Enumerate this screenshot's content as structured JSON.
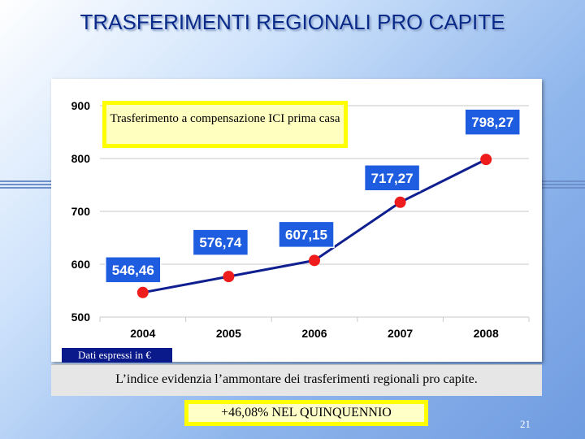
{
  "slide": {
    "title": "TRASFERIMENTI REGIONALI PRO CAPITE",
    "note": "Trasferimento a compensazione ICI prima casa",
    "units_label": "Dati espressi in €",
    "summary": "L’indice evidenzia l’ammontare dei trasferimenti regionali pro capite.",
    "growth": "+46,08% NEL QUINQUENNIO",
    "page_number": "21"
  },
  "chart_data": {
    "type": "line",
    "categories": [
      "2004",
      "2005",
      "2006",
      "2007",
      "2008"
    ],
    "values": [
      546.46,
      576.74,
      607.15,
      717.27,
      798.27
    ],
    "data_labels": [
      "546,46",
      "576,74",
      "607,15",
      "717,27",
      "798,27"
    ],
    "yticks": [
      "500",
      "600",
      "700",
      "800",
      "900"
    ],
    "ylim": [
      500,
      900
    ],
    "grid": true,
    "line_color": "#0f1f8f",
    "marker_color": "#ee1c1c",
    "label_box_color": "#1f5de0"
  }
}
